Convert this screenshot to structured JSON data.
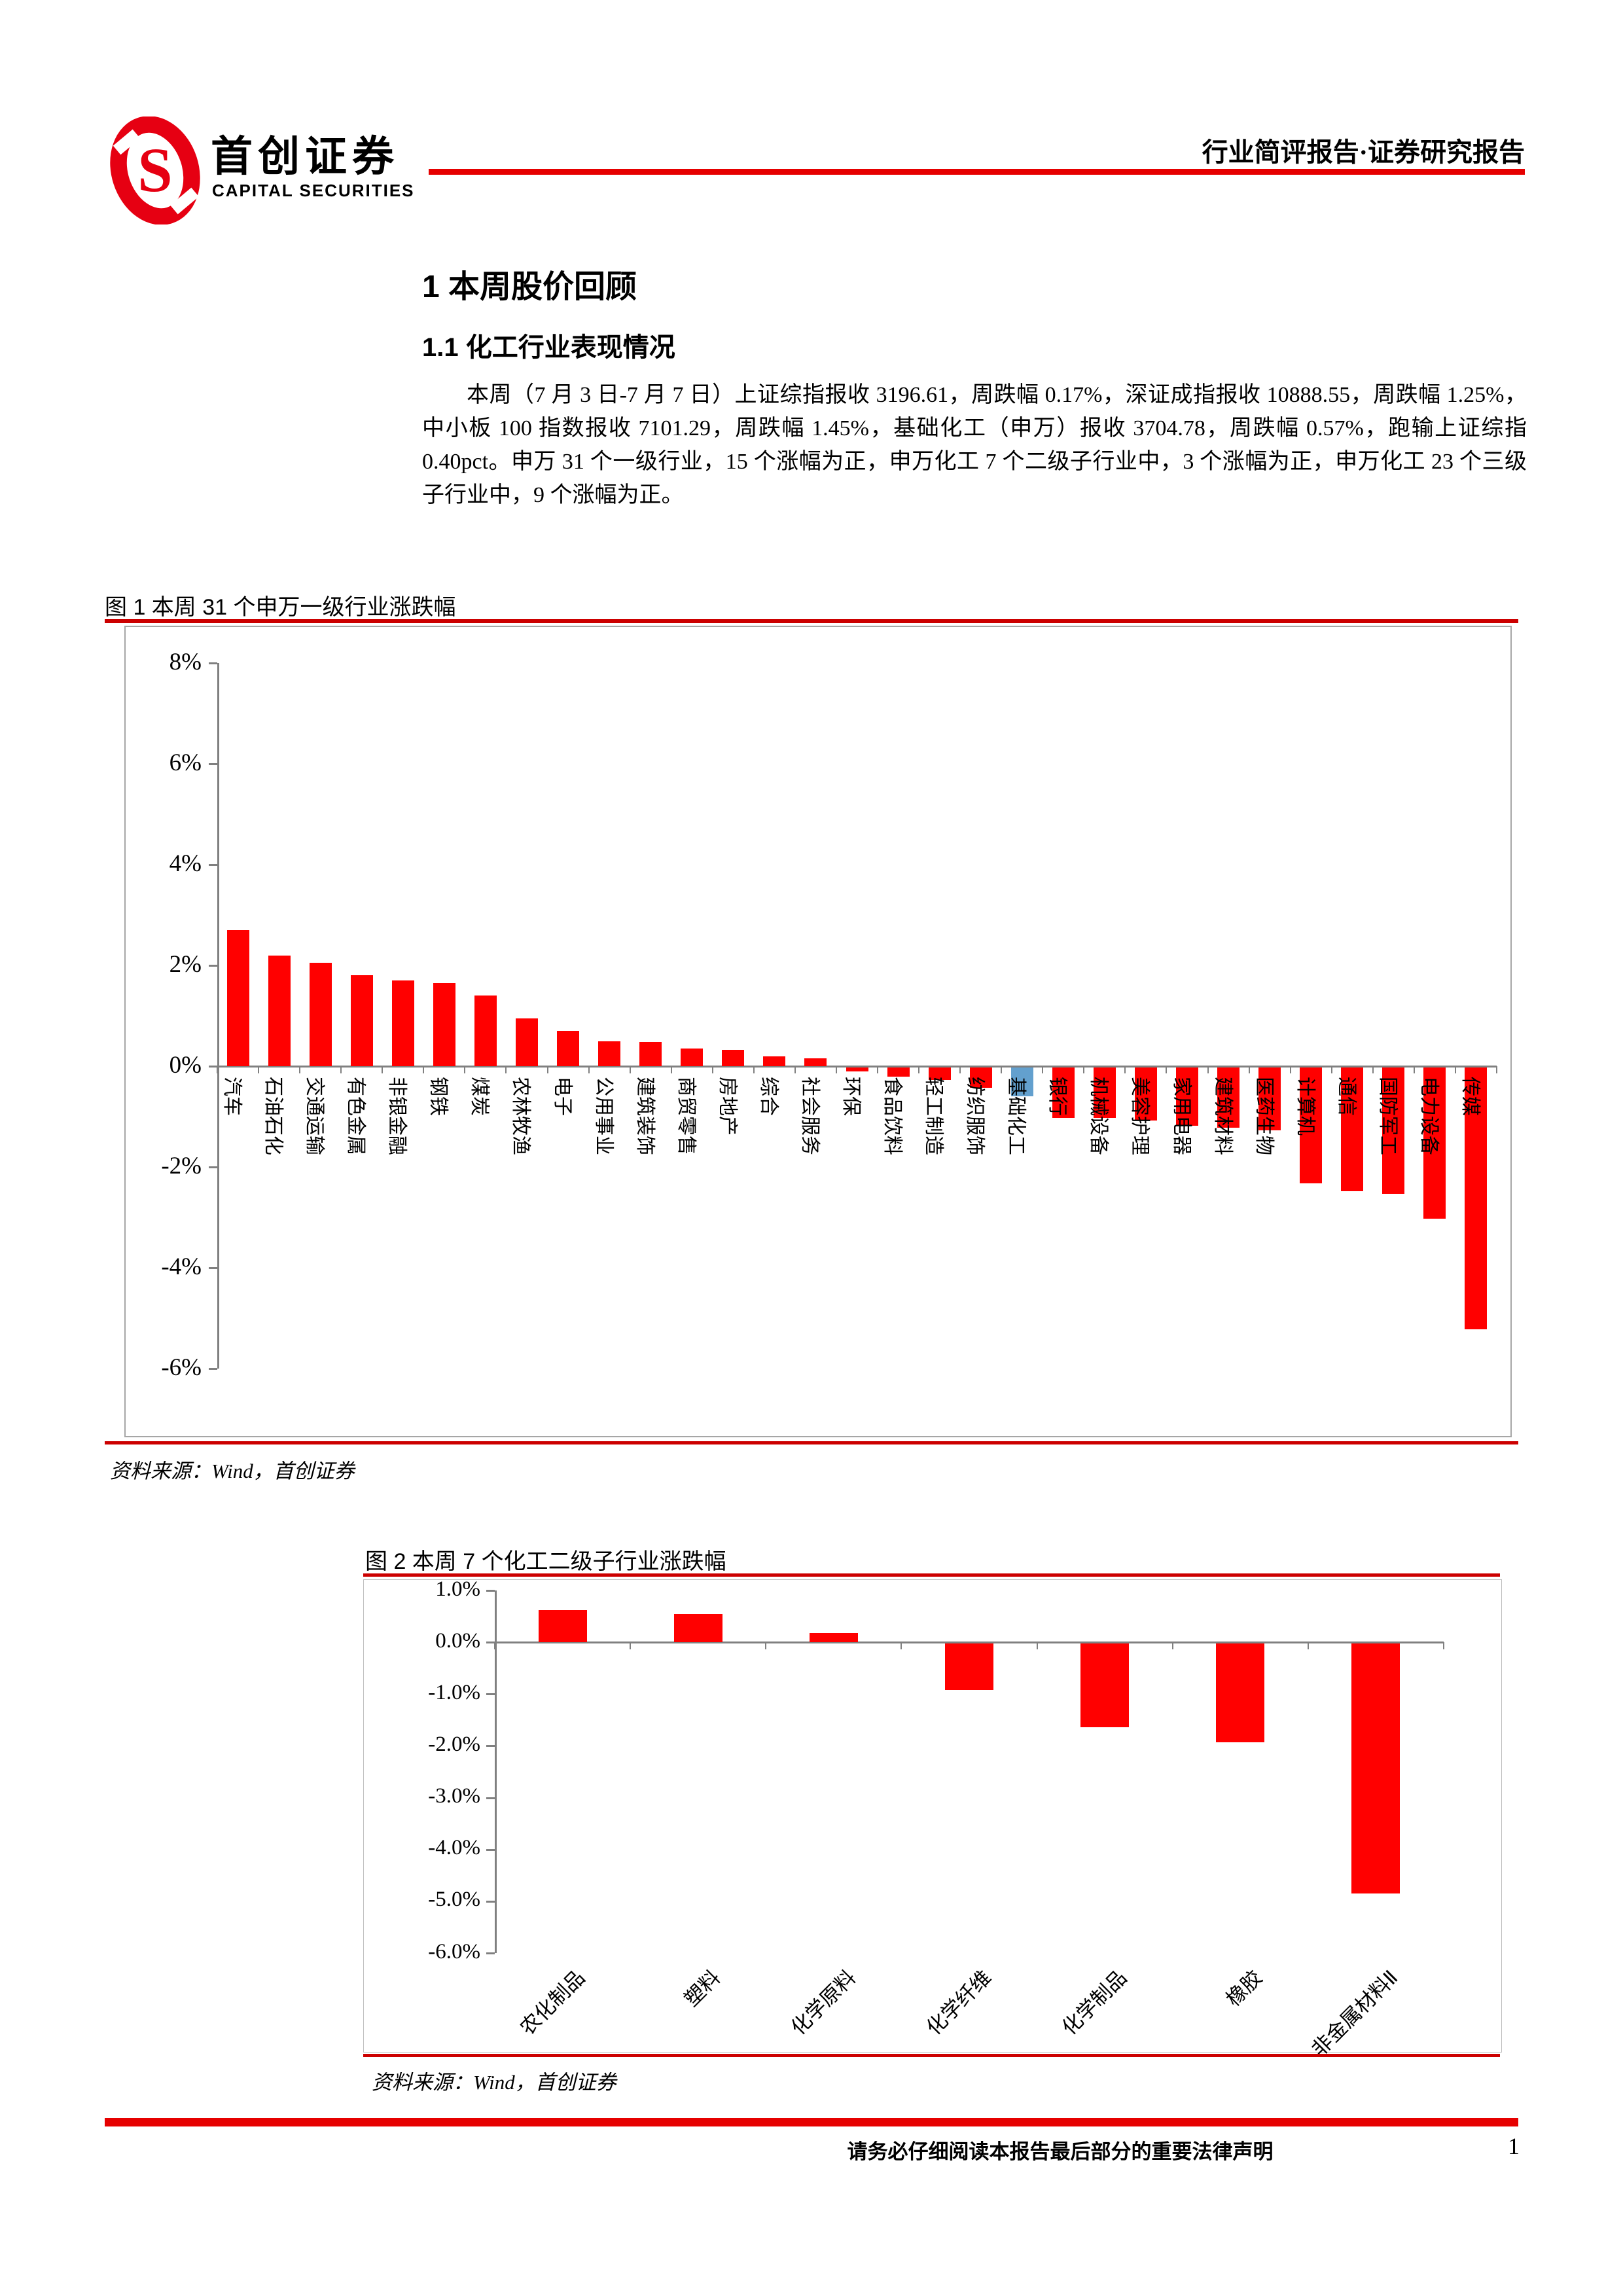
{
  "header": {
    "brand_cn": "首创证券",
    "brand_en": "CAPITAL SECURITIES",
    "doc_type": "行业简评报告·证券研究报告",
    "accent_color": "#E60000"
  },
  "section": {
    "h1": "1 本周股价回顾",
    "h2": "1.1 化工行业表现情况",
    "paragraph": "本周（7 月 3 日-7 月 7 日）上证综指报收 3196.61，周跌幅 0.17%，深证成指报收 10888.55，周跌幅 1.25%，中小板 100 指数报收 7101.29，周跌幅 1.45%，基础化工（申万）报收 3704.78，周跌幅 0.57%，跑输上证综指 0.40pct。申万 31 个一级行业，15 个涨幅为正，申万化工 7 个二级子行业中，3 个涨幅为正，申万化工 23 个三级子行业中，9 个涨幅为正。"
  },
  "figure1": {
    "caption": "图 1 本周 31 个申万一级行业涨跌幅",
    "source": "资料来源：Wind，首创证券"
  },
  "figure2": {
    "caption": "图 2 本周 7 个化工二级子行业涨跌幅",
    "source": "资料来源：Wind，首创证券"
  },
  "footer": {
    "disclaimer": "请务必仔细阅读本报告最后部分的重要法律声明",
    "page": "1"
  },
  "colors": {
    "bar_red": "#FF0000",
    "highlight_blue": "#63A0CE",
    "rule_red": "#CC0000",
    "axis_gray": "#808080"
  },
  "chart_data": [
    {
      "type": "bar",
      "title": "本周 31 个申万一级行业涨跌幅",
      "categories": [
        "汽车",
        "石油石化",
        "交通运输",
        "有色金属",
        "非银金融",
        "钢铁",
        "煤炭",
        "农林牧渔",
        "电子",
        "公用事业",
        "建筑装饰",
        "商贸零售",
        "房地产",
        "综合",
        "社会服务",
        "环保",
        "食品饮料",
        "轻工制造",
        "纺织服饰",
        "基础化工",
        "银行",
        "机械设备",
        "美容护理",
        "家用电器",
        "建筑材料",
        "医药生物",
        "计算机",
        "通信",
        "国防军工",
        "电力设备",
        "传媒"
      ],
      "values": [
        2.7,
        2.2,
        2.05,
        1.8,
        1.7,
        1.65,
        1.4,
        0.95,
        0.7,
        0.5,
        0.48,
        0.35,
        0.32,
        0.2,
        0.15,
        -0.08,
        -0.18,
        -0.25,
        -0.4,
        -0.57,
        -1.0,
        -1.0,
        -1.05,
        -1.15,
        -1.2,
        -1.25,
        -2.3,
        -2.45,
        -2.5,
        -3.0,
        -5.2
      ],
      "bar_color": "#FF0000",
      "highlight_index": 19,
      "highlight_color": "#63A0CE",
      "ylim": [
        -6,
        8
      ],
      "ytick_step": 2,
      "ytick_format": "0%",
      "xlabel": "",
      "ylabel": "",
      "grid": false,
      "legend": null
    },
    {
      "type": "bar",
      "title": "本周 7 个化工二级子行业涨跌幅",
      "categories": [
        "农化制品",
        "塑料",
        "化学原料",
        "化学纤维",
        "化学制品",
        "橡胶",
        "非金属材料Ⅱ"
      ],
      "values": [
        0.62,
        0.55,
        0.18,
        -0.9,
        -1.62,
        -1.9,
        -4.82
      ],
      "bar_color": "#FF0000",
      "highlight_index": -1,
      "highlight_color": "#FF0000",
      "ylim": [
        -6,
        1
      ],
      "ytick_step": 1,
      "ytick_format": "0.0%",
      "xlabel": "",
      "ylabel": "",
      "grid": false,
      "legend": null
    }
  ]
}
